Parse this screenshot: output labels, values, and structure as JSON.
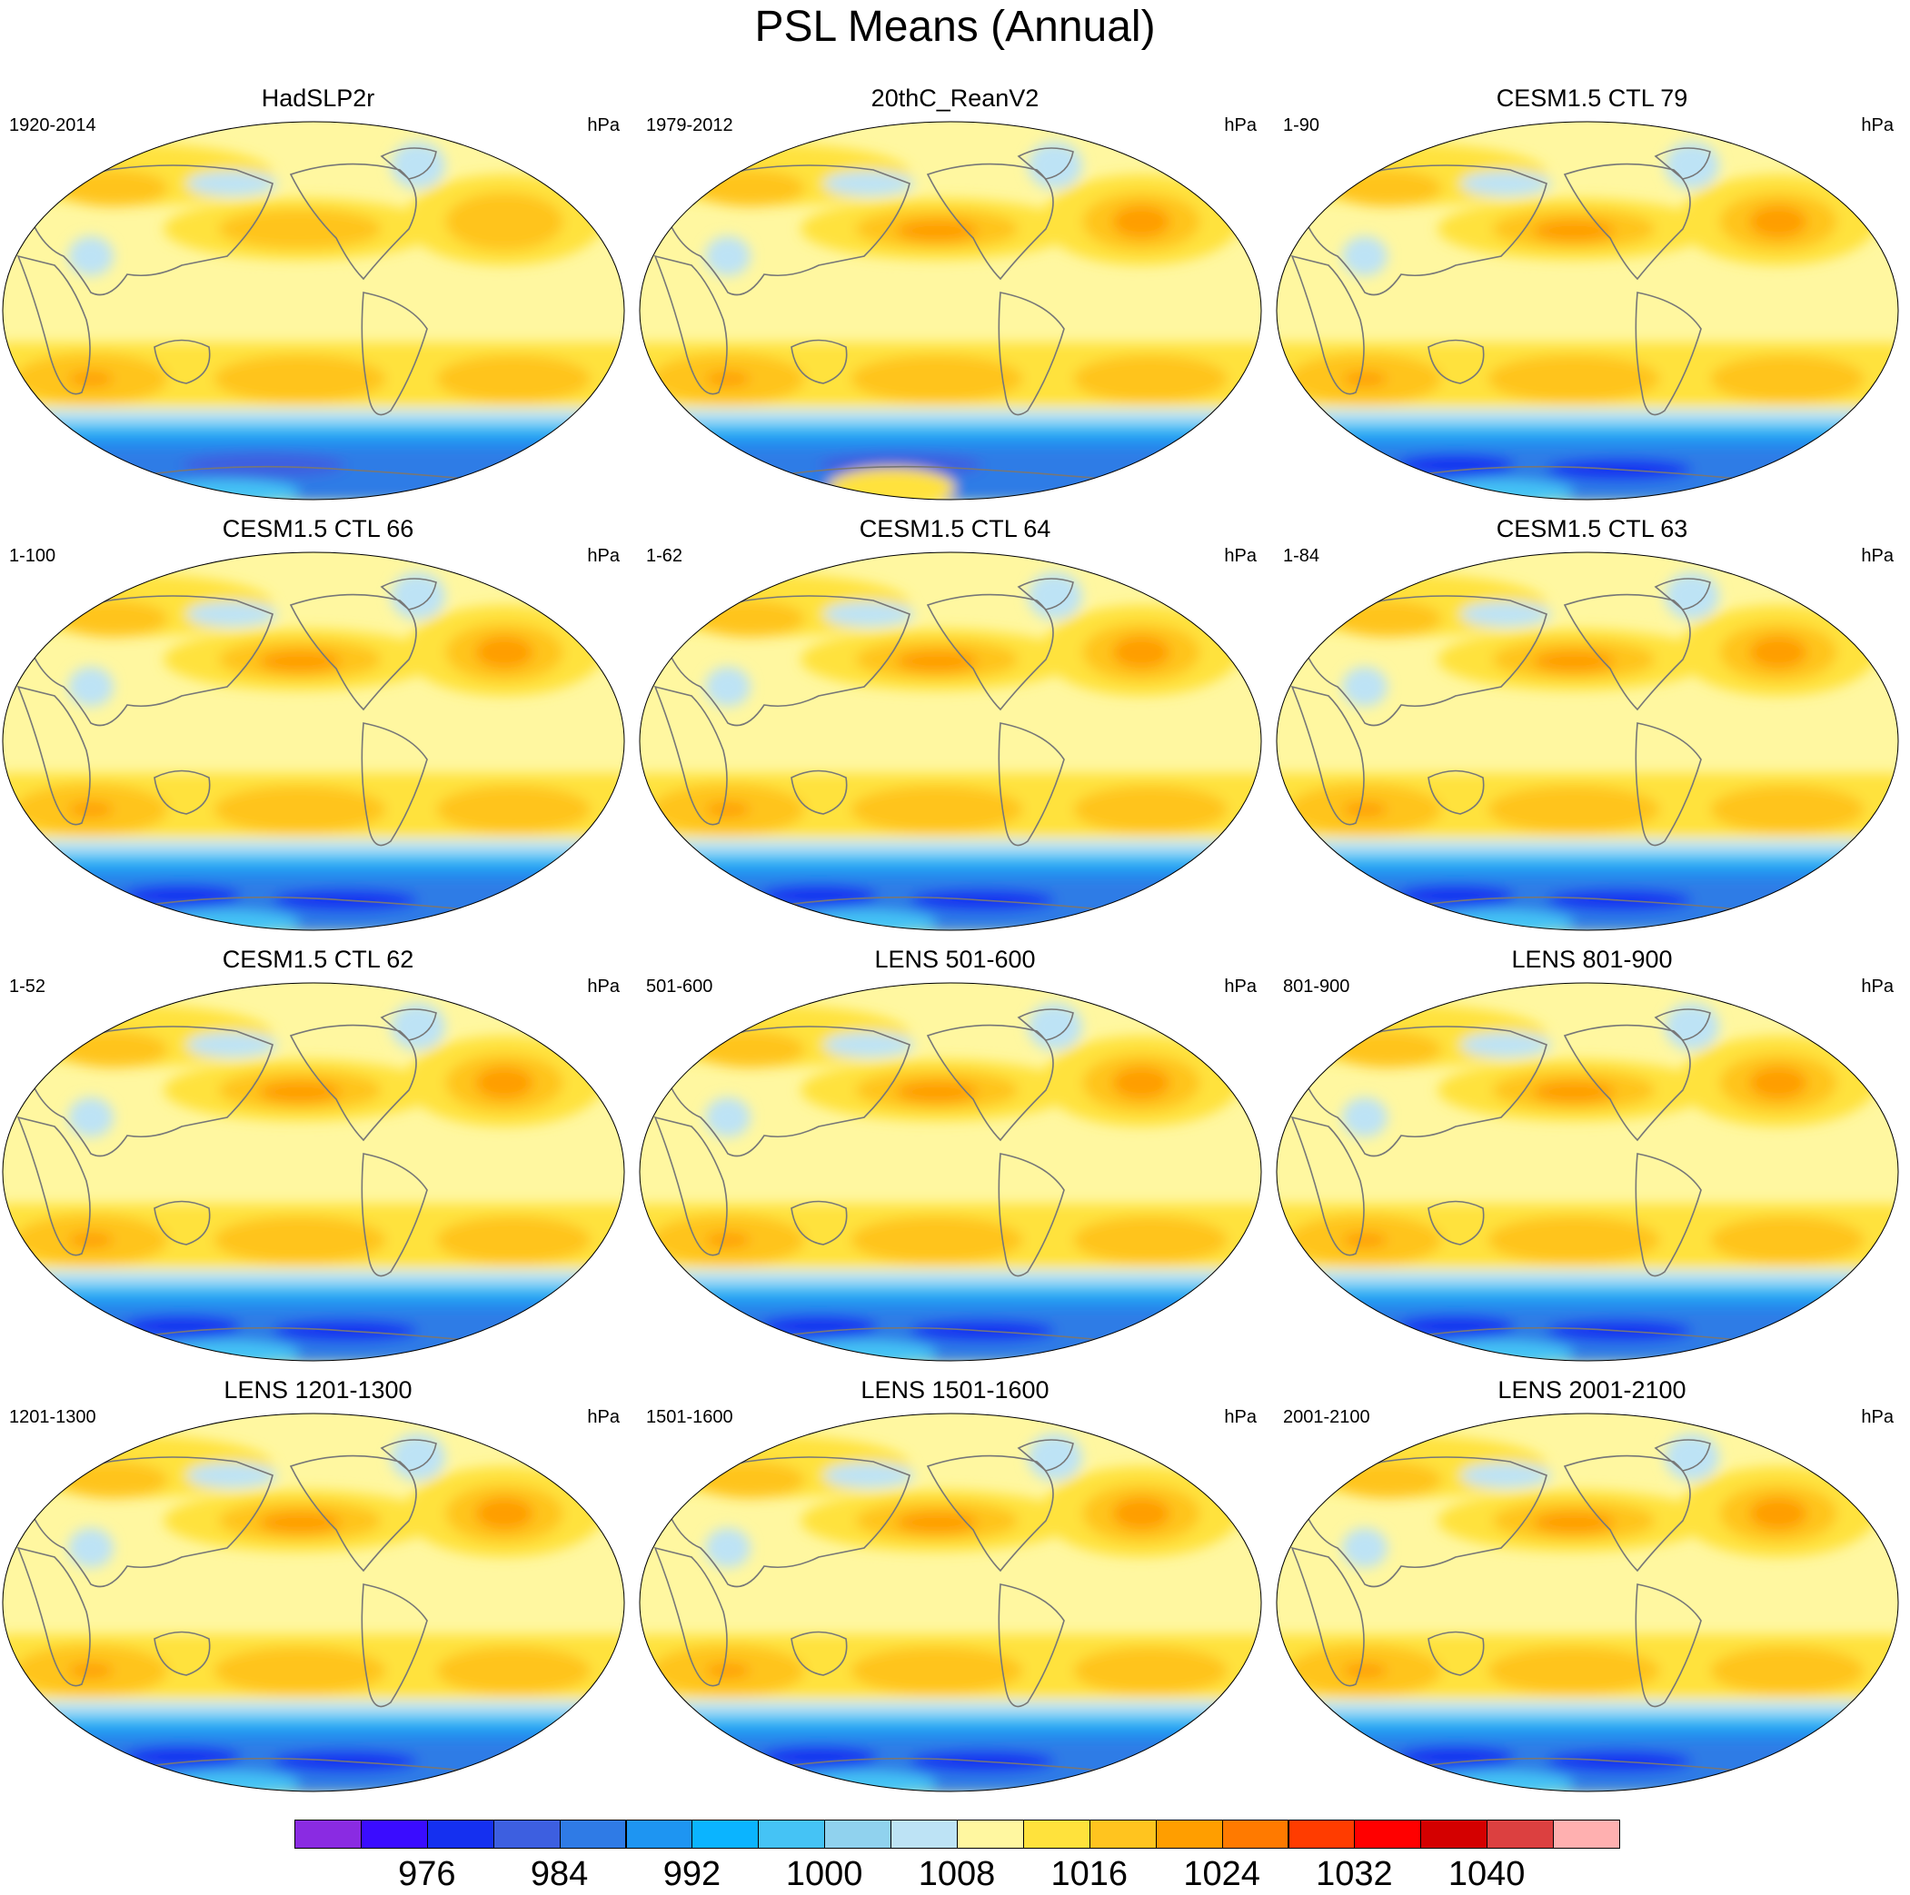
{
  "figure": {
    "title": "PSL Means (Annual)"
  },
  "panels": [
    {
      "title": "HadSLP2r",
      "period": "1920-2014",
      "unit": "hPa",
      "variant": "obs"
    },
    {
      "title": "20thC_ReanV2",
      "period": "1979-2012",
      "unit": "hPa",
      "variant": "rean"
    },
    {
      "title": "CESM1.5 CTL 79",
      "period": "1-90",
      "unit": "hPa",
      "variant": "model"
    },
    {
      "title": "CESM1.5 CTL 66",
      "period": "1-100",
      "unit": "hPa",
      "variant": "model"
    },
    {
      "title": "CESM1.5 CTL 64",
      "period": "1-62",
      "unit": "hPa",
      "variant": "model"
    },
    {
      "title": "CESM1.5 CTL 63",
      "period": "1-84",
      "unit": "hPa",
      "variant": "model"
    },
    {
      "title": "CESM1.5 CTL 62",
      "period": "1-52",
      "unit": "hPa",
      "variant": "model"
    },
    {
      "title": "LENS 501-600",
      "period": "501-600",
      "unit": "hPa",
      "variant": "lens"
    },
    {
      "title": "LENS 801-900",
      "period": "801-900",
      "unit": "hPa",
      "variant": "lens"
    },
    {
      "title": "LENS 1201-1300",
      "period": "1201-1300",
      "unit": "hPa",
      "variant": "lens"
    },
    {
      "title": "LENS 1501-1600",
      "period": "1501-1600",
      "unit": "hPa",
      "variant": "lens"
    },
    {
      "title": "LENS 2001-2100",
      "period": "2001-2100",
      "unit": "hPa",
      "variant": "lens"
    }
  ],
  "colorbar": {
    "colors": [
      "#8a2be2",
      "#3a0cff",
      "#1530f0",
      "#3d5fe0",
      "#2f7be6",
      "#1e95f2",
      "#0bb4ff",
      "#45c3f5",
      "#90d2ee",
      "#bde3f5",
      "#fff7a0",
      "#ffe23c",
      "#ffc41f",
      "#ff9e00",
      "#ff7a00",
      "#ff3c00",
      "#ff0000",
      "#d40000",
      "#dc4040",
      "#ffb0b0"
    ],
    "tick_labels": [
      "976",
      "984",
      "992",
      "1000",
      "1008",
      "1016",
      "1024",
      "1032",
      "1040"
    ]
  },
  "map_colors": {
    "ocean_base": "#fff7a0",
    "c1012": "#ffe23c",
    "c1016": "#ffc41f",
    "c1020": "#ff9e00",
    "c1024": "#ff7a00",
    "c1004": "#bde3f5",
    "c1000": "#90d2ee",
    "c996": "#45c3f5",
    "c992": "#1e95f2",
    "c988": "#2f7be6",
    "c984": "#3d5fe0",
    "c980": "#1530f0",
    "coast": "#777777"
  }
}
